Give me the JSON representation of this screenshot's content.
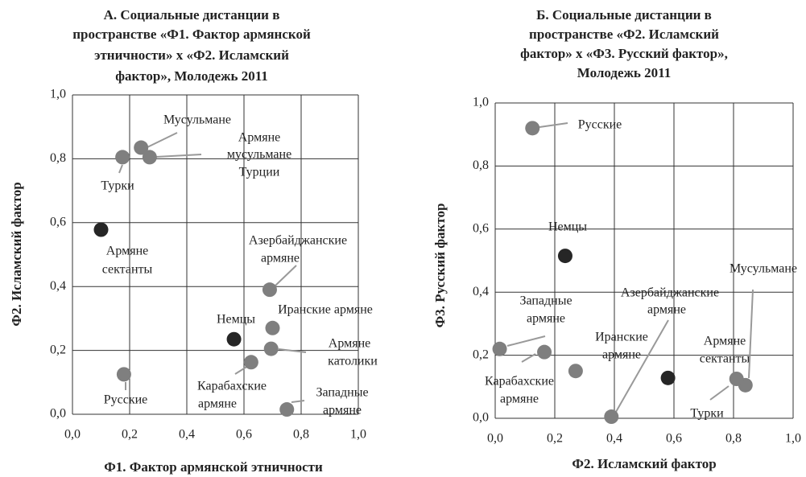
{
  "chart_data": [
    {
      "type": "scatter",
      "title": [
        "А. Социальные дистанции в",
        "пространстве «Ф1. Фактор армянской",
        "этничности» х «Ф2. Исламский",
        "фактор», Молодежь 2011"
      ],
      "x_label": "Ф1. Фактор армянской этничности",
      "y_label": "Ф2. Исламский фактор",
      "xlim": [
        0,
        1
      ],
      "ylim": [
        0,
        1
      ],
      "xticks": [
        {
          "value": 0,
          "label": "0,0"
        },
        {
          "value": 0.2,
          "label": "0,2"
        },
        {
          "value": 0.4,
          "label": "0,4"
        },
        {
          "value": 0.6,
          "label": "0,6"
        },
        {
          "value": 0.8,
          "label": "0,8"
        },
        {
          "value": 1,
          "label": "1,0"
        }
      ],
      "yticks": [
        {
          "value": 0,
          "label": "0,0"
        },
        {
          "value": 0.2,
          "label": "0,2"
        },
        {
          "value": 0.4,
          "label": "0,4"
        },
        {
          "value": 0.6,
          "label": "0,6"
        },
        {
          "value": 0.8,
          "label": "0,8"
        },
        {
          "value": 1,
          "label": "1,0"
        }
      ],
      "grid": true,
      "labels": [
        [
          "Мусульмане"
        ],
        [
          "Армяне",
          "мусульмане",
          "Турции"
        ],
        [
          "Турки"
        ],
        [
          "Армяне",
          "сектанты"
        ],
        [
          "Азербайджанские",
          "армяне"
        ],
        [
          "Иранские армяне"
        ],
        [
          "Немцы"
        ],
        [
          "Армяне",
          "католики"
        ],
        [
          "Карабахские",
          "армяне"
        ],
        [
          "Русские"
        ],
        [
          "Западные",
          "армяне"
        ]
      ],
      "x": [
        0.24,
        0.27,
        0.175,
        0.1,
        0.69,
        0.7,
        0.565,
        0.695,
        0.625,
        0.18,
        0.75
      ],
      "values": [
        0.835,
        0.805,
        0.805,
        0.578,
        0.39,
        0.27,
        0.235,
        0.205,
        0.163,
        0.125,
        0.015
      ],
      "colors": [
        "#7f7f7f",
        "#7f7f7f",
        "#7f7f7f",
        "#262626",
        "#7f7f7f",
        "#7f7f7f",
        "#262626",
        "#7f7f7f",
        "#7f7f7f",
        "#7f7f7f",
        "#7f7f7f"
      ]
    },
    {
      "type": "scatter",
      "title": [
        "Б. Социальные дистанции в",
        "пространстве «Ф2. Исламский",
        "фактор» х «Ф3. Русский фактор»,",
        "Молодежь 2011"
      ],
      "x_label": "Ф2. Исламский фактор",
      "y_label": "Ф3. Русский фактор",
      "xlim": [
        0,
        1
      ],
      "ylim": [
        0,
        1
      ],
      "xticks": [
        {
          "value": 0,
          "label": "0,0"
        },
        {
          "value": 0.2,
          "label": "0,2"
        },
        {
          "value": 0.4,
          "label": "0,4"
        },
        {
          "value": 0.6,
          "label": "0,6"
        },
        {
          "value": 0.8,
          "label": "0,8"
        },
        {
          "value": 1,
          "label": "1,0"
        }
      ],
      "yticks": [
        {
          "value": 0,
          "label": "0,0"
        },
        {
          "value": 0.2,
          "label": "0,2"
        },
        {
          "value": 0.4,
          "label": "0,4"
        },
        {
          "value": 0.6,
          "label": "0,6"
        },
        {
          "value": 0.8,
          "label": "0,8"
        },
        {
          "value": 1,
          "label": "1,0"
        }
      ],
      "grid": true,
      "labels": [
        [
          "Русские"
        ],
        [
          "Немцы"
        ],
        [
          "Западные",
          "армяне"
        ],
        [
          "Карабахские",
          "армяне"
        ],
        [
          "Иранские",
          "армяне"
        ],
        [
          "Азербайджанские",
          "армяне"
        ],
        [
          "Армяне",
          "сектанты"
        ],
        [
          "Мусульмане"
        ],
        [
          "Турки"
        ]
      ],
      "x": [
        0.125,
        0.235,
        0.015,
        0.165,
        0.27,
        0.39,
        0.58,
        0.84,
        0.81
      ],
      "values": [
        0.92,
        0.515,
        0.22,
        0.21,
        0.15,
        0.005,
        0.128,
        0.105,
        0.125
      ],
      "colors": [
        "#7f7f7f",
        "#262626",
        "#7f7f7f",
        "#7f7f7f",
        "#7f7f7f",
        "#7f7f7f",
        "#262626",
        "#7f7f7f",
        "#7f7f7f"
      ]
    }
  ]
}
